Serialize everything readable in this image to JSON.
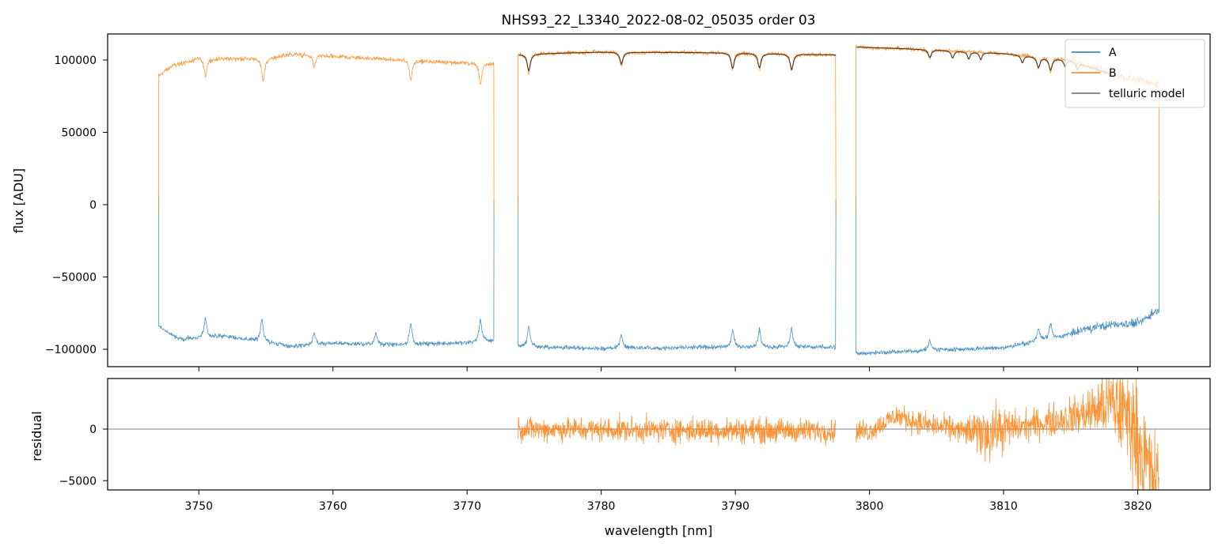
{
  "chart_data": [
    {
      "type": "line",
      "title": "NHS93_22_L3340_2022-08-02_05035  order 03",
      "xlabel": "",
      "ylabel": "flux [ADU]",
      "xlim": [
        3743.2,
        3825.4
      ],
      "ylim": [
        -112000,
        118000
      ],
      "x_ticks": [
        3750,
        3760,
        3770,
        3780,
        3790,
        3800,
        3810,
        3820
      ],
      "y_ticks": [
        100000,
        50000,
        0,
        -50000,
        -100000
      ],
      "y_tick_labels": [
        "100000",
        "50000",
        "0",
        "−50000",
        "−100000"
      ],
      "grid": false,
      "legend_position": "top-right",
      "segments": [
        [
          3747.0,
          3772.0
        ],
        [
          3773.8,
          3797.5
        ],
        [
          3799.0,
          3821.6
        ]
      ],
      "series": [
        {
          "name": "A",
          "color": "#1f77b4",
          "baseline": [
            [
              3747.0,
              -84000
            ],
            [
              3748.5,
              -93000
            ],
            [
              3752.0,
              -91000
            ],
            [
              3757.0,
              -98000
            ],
            [
              3760.0,
              -96000
            ],
            [
              3765.0,
              -97000
            ],
            [
              3770.0,
              -95500
            ],
            [
              3772.0,
              -94000
            ],
            [
              3773.8,
              -98000
            ],
            [
              3780.0,
              -99500
            ],
            [
              3790.0,
              -98500
            ],
            [
              3797.5,
              -98500
            ],
            [
              3799.0,
              -103000
            ],
            [
              3805.0,
              -100500
            ],
            [
              3810.0,
              -99000
            ],
            [
              3814.0,
              -92000
            ],
            [
              3817.0,
              -84000
            ],
            [
              3820.0,
              -82000
            ],
            [
              3821.6,
              -72000
            ]
          ],
          "peaks": [
            [
              3750.5,
              13000
            ],
            [
              3754.7,
              16000
            ],
            [
              3758.6,
              8000
            ],
            [
              3763.2,
              8000
            ],
            [
              3765.8,
              14000
            ],
            [
              3771.0,
              15000
            ],
            [
              3774.6,
              14000
            ],
            [
              3781.5,
              10000
            ],
            [
              3789.8,
              12000
            ],
            [
              3791.8,
              12000
            ],
            [
              3794.2,
              13000
            ],
            [
              3804.5,
              7000
            ],
            [
              3812.6,
              9000
            ],
            [
              3813.5,
              10000
            ]
          ]
        },
        {
          "name": "B",
          "color": "#ff7f0e",
          "baseline": [
            [
              3747.0,
              89000
            ],
            [
              3748.0,
              96000
            ],
            [
              3750.0,
              101000
            ],
            [
              3755.0,
              101000
            ],
            [
              3757.0,
              104000
            ],
            [
              3760.0,
              102500
            ],
            [
              3765.0,
              100000
            ],
            [
              3770.0,
              98000
            ],
            [
              3772.0,
              97500
            ],
            [
              3773.8,
              104000
            ],
            [
              3780.0,
              105500
            ],
            [
              3790.0,
              105000
            ],
            [
              3797.5,
              103500
            ],
            [
              3799.0,
              109000
            ],
            [
              3805.0,
              107000
            ],
            [
              3810.0,
              104500
            ],
            [
              3815.0,
              100000
            ],
            [
              3818.0,
              90000
            ],
            [
              3821.6,
              83000
            ]
          ],
          "dips": [
            [
              3750.5,
              12000
            ],
            [
              3754.8,
              16000
            ],
            [
              3758.6,
              8000
            ],
            [
              3765.8,
              13000
            ],
            [
              3771.0,
              14000
            ],
            [
              3774.6,
              13000
            ],
            [
              3781.5,
              9000
            ],
            [
              3789.8,
              12000
            ],
            [
              3791.8,
              11000
            ],
            [
              3794.2,
              12000
            ],
            [
              3804.5,
              6000
            ],
            [
              3812.6,
              8000
            ],
            [
              3813.5,
              9000
            ]
          ]
        },
        {
          "name": "telluric model",
          "color": "#5a3a1e",
          "range": [
            3773.8,
            3818.0
          ]
        }
      ]
    },
    {
      "type": "line",
      "title": "",
      "xlabel": "wavelength [nm]",
      "ylabel": "residual",
      "xlim": [
        3743.2,
        3825.4
      ],
      "ylim": [
        -5900,
        4900
      ],
      "x_ticks": [
        3750,
        3760,
        3770,
        3780,
        3790,
        3800,
        3810,
        3820
      ],
      "x_tick_labels": [
        "3750",
        "3760",
        "3770",
        "3780",
        "3790",
        "3800",
        "3810",
        "3820"
      ],
      "y_ticks": [
        0,
        -5000
      ],
      "y_tick_labels": [
        "0",
        "−5000"
      ],
      "zero_line": true,
      "series": [
        {
          "name": "B",
          "color": "#ff7f0e",
          "ranges": [
            [
              3773.8,
              3797.5
            ],
            [
              3799.0,
              3821.6
            ]
          ],
          "noise_envelope": [
            [
              3773.8,
              1300
            ],
            [
              3790.0,
              1400
            ],
            [
              3797.5,
              1300
            ],
            [
              3799.0,
              1200
            ],
            [
              3803.0,
              1300
            ],
            [
              3807.0,
              1400
            ],
            [
              3809.0,
              3200
            ],
            [
              3811.0,
              1800
            ],
            [
              3813.0,
              1600
            ],
            [
              3816.0,
              2400
            ],
            [
              3818.0,
              4500
            ],
            [
              3820.0,
              6000
            ],
            [
              3821.6,
              5000
            ]
          ],
          "trend": [
            [
              3773.8,
              0
            ],
            [
              3800.0,
              -200
            ],
            [
              3802.0,
              1300
            ],
            [
              3804.0,
              500
            ],
            [
              3808.0,
              -400
            ],
            [
              3813.0,
              600
            ],
            [
              3816.0,
              1500
            ],
            [
              3818.0,
              2500
            ],
            [
              3819.5,
              1000
            ],
            [
              3820.5,
              -3000
            ],
            [
              3821.6,
              -5600
            ]
          ]
        }
      ]
    }
  ]
}
